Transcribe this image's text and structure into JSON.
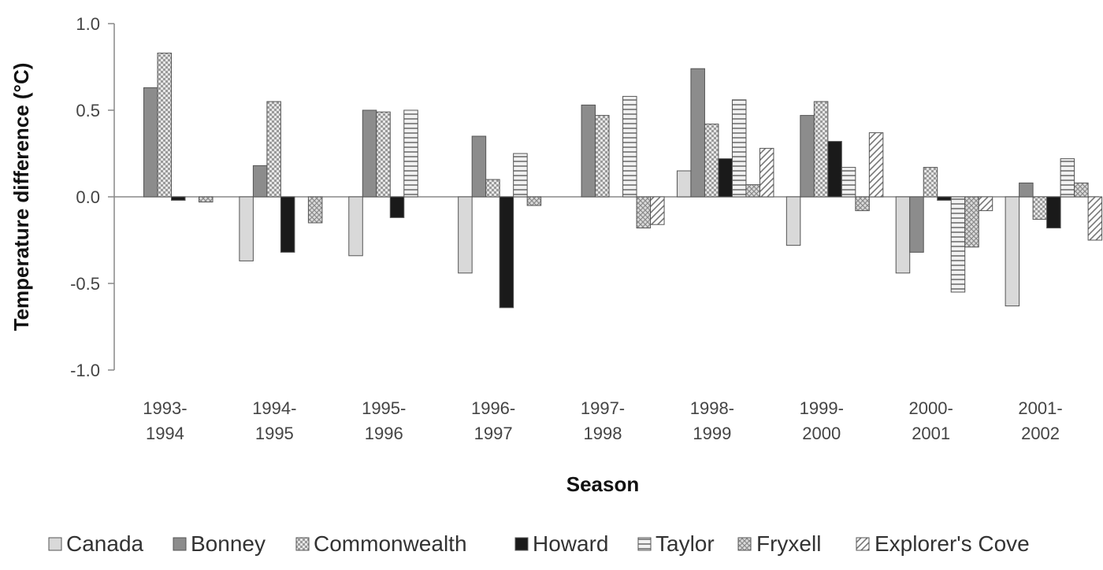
{
  "chart_data": {
    "type": "bar",
    "xlabel": "Season",
    "ylabel": "Temperature difference (°C)",
    "ylim": [
      -1.0,
      1.0
    ],
    "yticks": [
      "1.0",
      "0.5",
      "0.0",
      "-0.5",
      "-1.0"
    ],
    "ytick_values": [
      1.0,
      0.5,
      0.0,
      -0.5,
      -1.0
    ],
    "categories": [
      [
        "1993-",
        "1994"
      ],
      [
        "1994-",
        "1995"
      ],
      [
        "1995-",
        "1996"
      ],
      [
        "1996-",
        "1997"
      ],
      [
        "1997-",
        "1998"
      ],
      [
        "1998-",
        "1999"
      ],
      [
        "1999-",
        "2000"
      ],
      [
        "2000-",
        "2001"
      ],
      [
        "2001-",
        "2002"
      ]
    ],
    "legend_position": "bottom",
    "series": [
      {
        "name": "Canada",
        "color": "#d9d9d9",
        "pattern": "solid-light",
        "values": [
          0.0,
          -0.37,
          -0.34,
          -0.44,
          0.0,
          0.15,
          -0.28,
          -0.44,
          -0.63
        ]
      },
      {
        "name": "Bonney",
        "color": "#8c8c8c",
        "pattern": "solid-dark",
        "values": [
          0.63,
          0.18,
          0.5,
          0.35,
          0.53,
          0.74,
          0.47,
          -0.32,
          0.08
        ]
      },
      {
        "name": "Commonwealth",
        "color": "#c8c8c8",
        "pattern": "checker",
        "values": [
          0.83,
          0.55,
          0.49,
          0.1,
          0.47,
          0.42,
          0.55,
          0.17,
          -0.13
        ]
      },
      {
        "name": "Howard",
        "color": "#1a1a1a",
        "pattern": "solid-black",
        "values": [
          -0.02,
          -0.32,
          -0.12,
          -0.64,
          0.0,
          0.22,
          0.32,
          -0.02,
          -0.18
        ]
      },
      {
        "name": "Taylor",
        "color": "#e0e0e0",
        "pattern": "hstripe",
        "values": [
          0.0,
          0.0,
          0.5,
          0.25,
          0.58,
          0.56,
          0.17,
          -0.55,
          0.22
        ]
      },
      {
        "name": "Fryxell",
        "color": "#bdbdbd",
        "pattern": "crosshatch",
        "values": [
          -0.03,
          -0.15,
          0.0,
          -0.05,
          -0.18,
          0.07,
          -0.08,
          -0.29,
          0.08
        ]
      },
      {
        "name": "Explorer's Cove",
        "color": "#ffffff",
        "pattern": "diag",
        "values": [
          0.0,
          0.0,
          0.0,
          0.0,
          -0.16,
          0.28,
          0.37,
          -0.08,
          -0.25
        ]
      }
    ]
  }
}
